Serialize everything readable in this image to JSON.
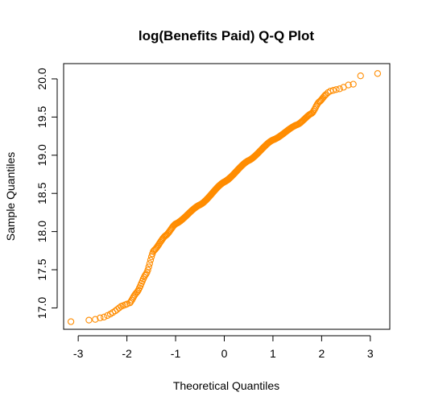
{
  "chart_data": {
    "type": "scatter",
    "title": "log(Benefits Paid) Q-Q Plot",
    "xlabel": "Theoretical Quantiles",
    "ylabel": "Sample Quantiles",
    "xlim": [
      -3.3,
      3.4
    ],
    "ylim": [
      16.72,
      20.2
    ],
    "x_ticks": [
      -3,
      -2,
      -1,
      0,
      1,
      2,
      3
    ],
    "x_tick_labels": [
      "-3",
      "-2",
      "-1",
      "0",
      "1",
      "2",
      "3"
    ],
    "y_ticks": [
      17.0,
      17.5,
      18.0,
      18.5,
      19.0,
      19.5,
      20.0
    ],
    "y_tick_labels": [
      "17.0",
      "17.5",
      "18.0",
      "18.5",
      "19.0",
      "19.5",
      "20.0"
    ],
    "grid": false,
    "marker": "open-circle",
    "marker_color": "#FF8C00",
    "points": [
      {
        "x": -3.15,
        "y": 16.82
      },
      {
        "x": -2.78,
        "y": 16.84
      },
      {
        "x": -2.65,
        "y": 16.85
      },
      {
        "x": -2.55,
        "y": 16.87
      },
      {
        "x": -2.47,
        "y": 16.88
      },
      {
        "x": -2.4,
        "y": 16.9
      },
      {
        "x": -2.34,
        "y": 16.92
      },
      {
        "x": -2.29,
        "y": 16.94
      },
      {
        "x": -2.24,
        "y": 16.96
      },
      {
        "x": -2.2,
        "y": 16.98
      },
      {
        "x": -2.16,
        "y": 17.0
      },
      {
        "x": -2.12,
        "y": 17.02
      },
      {
        "x": -2.08,
        "y": 17.03
      },
      {
        "x": -2.04,
        "y": 17.04
      },
      {
        "x": -2.0,
        "y": 17.05
      }
    ],
    "curve_knots": [
      [
        -1.95,
        17.06
      ],
      [
        -1.8,
        17.2
      ],
      [
        -1.6,
        17.45
      ],
      [
        -1.45,
        17.75
      ],
      [
        -1.2,
        17.95
      ],
      [
        -1.0,
        18.1
      ],
      [
        -0.5,
        18.35
      ],
      [
        0.0,
        18.65
      ],
      [
        0.5,
        18.93
      ],
      [
        1.0,
        19.2
      ],
      [
        1.5,
        19.4
      ],
      [
        1.8,
        19.55
      ],
      [
        1.95,
        19.7
      ],
      [
        2.1,
        19.8
      ]
    ],
    "curve_n": 320,
    "upper_tail_points": [
      {
        "x": 2.13,
        "y": 19.82
      },
      {
        "x": 2.18,
        "y": 19.84
      },
      {
        "x": 2.24,
        "y": 19.85
      },
      {
        "x": 2.3,
        "y": 19.86
      },
      {
        "x": 2.37,
        "y": 19.87
      },
      {
        "x": 2.45,
        "y": 19.89
      },
      {
        "x": 2.55,
        "y": 19.92
      },
      {
        "x": 2.65,
        "y": 19.93
      },
      {
        "x": 2.8,
        "y": 20.04
      },
      {
        "x": 3.15,
        "y": 20.07
      }
    ]
  }
}
